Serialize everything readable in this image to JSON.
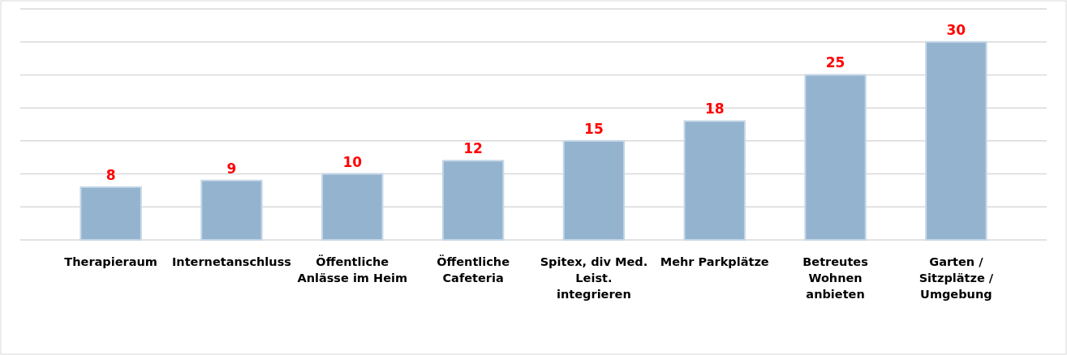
{
  "chart_data": {
    "type": "bar",
    "categories": [
      "Therapieraum",
      "Internetanschluss",
      "Öffentliche Anlässe im Heim",
      "Öffentliche Cafeteria",
      "Spitex, div Med. Leist. integrieren",
      "Mehr Parkplätze",
      "Betreutes Wohnen anbieten",
      "Garten / Sitzplätze / Umgebung"
    ],
    "values": [
      8,
      9,
      10,
      12,
      15,
      18,
      25,
      30
    ],
    "color": "#93b3cf",
    "ylim": [
      0,
      35
    ],
    "yticks": [
      {
        "value": 0,
        "label": null
      },
      {
        "value": 5,
        "label": null
      },
      {
        "value": 10,
        "label": null
      },
      {
        "value": 15,
        "label": null
      },
      {
        "value": 20,
        "label": null
      },
      {
        "value": 25,
        "label": null
      },
      {
        "value": 30,
        "label": null
      },
      {
        "value": 35,
        "label": null
      }
    ],
    "grid": "y",
    "tick_labels": "x",
    "data_labels": true
  }
}
